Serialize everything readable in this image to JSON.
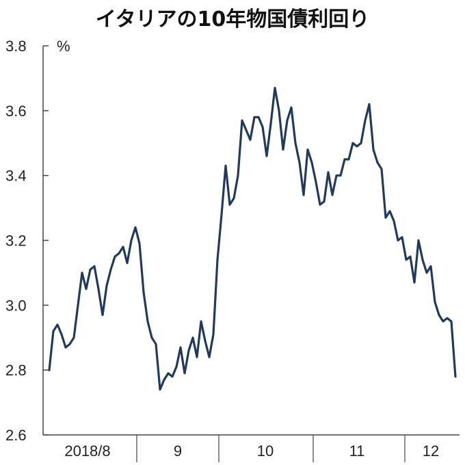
{
  "chart_data": {
    "type": "line",
    "title": "イタリアの10年物国債利回り",
    "unit": "%",
    "ylim": [
      2.6,
      3.8
    ],
    "yticks": [
      "3.8",
      "3.6",
      "3.4",
      "3.2",
      "3.0",
      "2.8",
      "2.6"
    ],
    "ytick_values": [
      3.8,
      3.6,
      3.4,
      3.2,
      3.0,
      2.8,
      2.6
    ],
    "xlabels": [
      "2018/8",
      "9",
      "10",
      "11",
      "12"
    ],
    "grid": false,
    "colors": {
      "line": "#1f3a5f",
      "axis": "#444444"
    },
    "series": [
      {
        "values": [
          2.8,
          2.92,
          2.94,
          2.91,
          2.87,
          2.88,
          2.9,
          3.0,
          3.1,
          3.05,
          3.11,
          3.12,
          3.05,
          2.97,
          3.06,
          3.11,
          3.15,
          3.16,
          3.18,
          3.13,
          3.2,
          3.24,
          3.19,
          3.04,
          2.95,
          2.9,
          2.88,
          2.74,
          2.77,
          2.79,
          2.78,
          2.81,
          2.87,
          2.79,
          2.86,
          2.9,
          2.84,
          2.95,
          2.89,
          2.84,
          2.91,
          3.14,
          3.28,
          3.43,
          3.31,
          3.33,
          3.4,
          3.57,
          3.54,
          3.51,
          3.58,
          3.58,
          3.55,
          3.46,
          3.56,
          3.67,
          3.6,
          3.48,
          3.57,
          3.61,
          3.5,
          3.44,
          3.34,
          3.48,
          3.44,
          3.38,
          3.31,
          3.32,
          3.41,
          3.34,
          3.4,
          3.4,
          3.45,
          3.45,
          3.5,
          3.49,
          3.5,
          3.57,
          3.62,
          3.48,
          3.44,
          3.42,
          3.27,
          3.29,
          3.26,
          3.2,
          3.21,
          3.14,
          3.15,
          3.07,
          3.2,
          3.14,
          3.1,
          3.12,
          3.01,
          2.97,
          2.95,
          2.96,
          2.95,
          2.78
        ]
      }
    ]
  }
}
